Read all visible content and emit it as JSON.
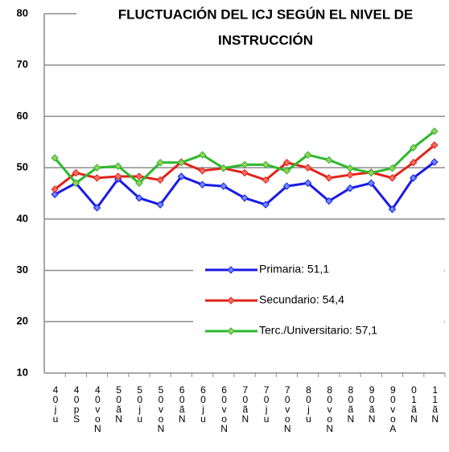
{
  "chart_data": {
    "type": "line",
    "title": [
      "FLUCTUACIÓN DEL ICJ SEGÚN EL NIVEL DE",
      "INSTRUCCIÓN"
    ],
    "categories": [
      "40ju",
      "40pS",
      "40voN",
      "50ãN",
      "50ju",
      "50voN",
      "60ãN",
      "60ju",
      "60voN",
      "70ãN",
      "70ju",
      "70voN",
      "80ju",
      "80voN",
      "80ãN",
      "90ãN",
      "90voA",
      "01ãN",
      "11ãN"
    ],
    "series": [
      {
        "name": "Primaria: 51,1",
        "color": "#1a1ae6",
        "fill": "#6a8cff",
        "values": [
          44.8,
          47.0,
          42.2,
          47.8,
          44.1,
          42.8,
          48.3,
          46.7,
          46.4,
          44.1,
          42.8,
          46.4,
          47.0,
          43.5,
          46.0,
          47.0,
          41.9,
          48.0,
          51.1
        ]
      },
      {
        "name": "Secundario: 54,4",
        "color": "#e2231a",
        "fill": "#f07060",
        "values": [
          45.8,
          49.0,
          48.0,
          48.3,
          48.3,
          47.6,
          51.1,
          49.4,
          49.9,
          49.0,
          47.6,
          51.0,
          50.0,
          48.0,
          48.6,
          49.1,
          48.0,
          51.0,
          54.4
        ]
      },
      {
        "name": "Terc./Universitario: 57,1",
        "color": "#2db82d",
        "fill": "#9ad05a",
        "values": [
          51.9,
          47.0,
          50.0,
          50.3,
          47.0,
          51.0,
          51.0,
          52.5,
          49.9,
          50.6,
          50.6,
          49.4,
          52.5,
          51.5,
          49.9,
          49.0,
          49.9,
          53.9,
          57.1
        ]
      }
    ],
    "ylim": [
      10,
      80
    ],
    "yticks": [
      10,
      20,
      30,
      40,
      50,
      60,
      70,
      80
    ],
    "grid": true,
    "legend": "lower right"
  }
}
